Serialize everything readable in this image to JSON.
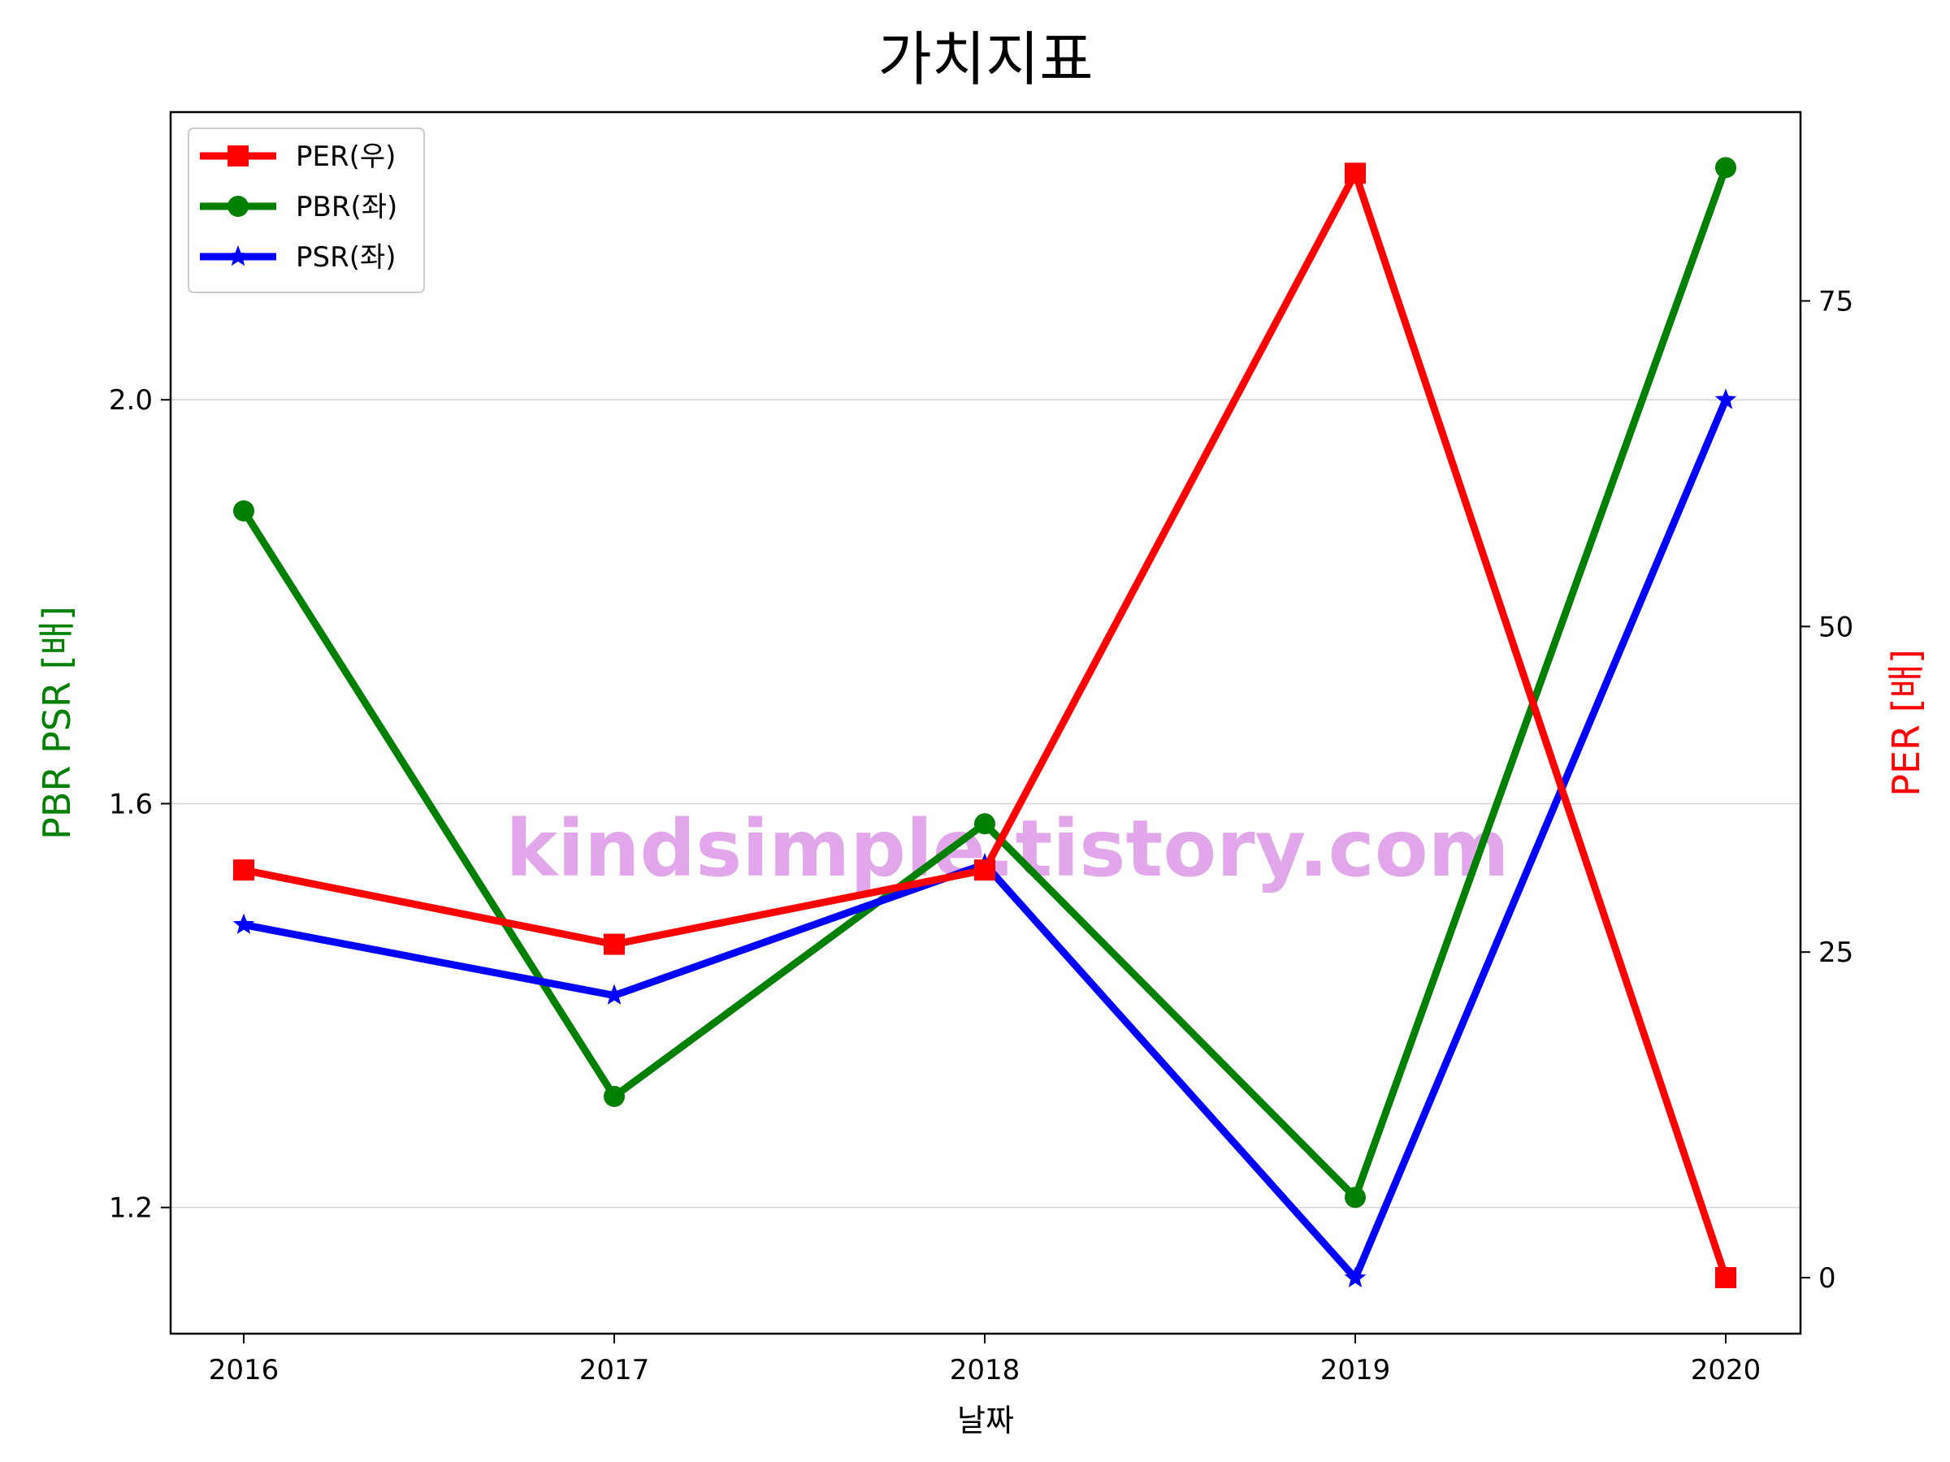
{
  "chart_data": {
    "type": "line",
    "title": "가치지표",
    "xlabel": "날짜",
    "ylabel_left": "PBR PSR [배]",
    "ylabel_right": "PER [배]",
    "x": [
      "2016",
      "2017",
      "2018",
      "2019",
      "2020"
    ],
    "x_ticks": [
      "2016",
      "2017",
      "2018",
      "2019",
      "2020"
    ],
    "y_left_range": [
      1.075,
      2.285
    ],
    "y_left_ticks": [
      "1.2",
      "1.6",
      "2.0"
    ],
    "y_right_range": [
      -4.3,
      89.5
    ],
    "y_right_ticks": [
      "0",
      "25",
      "50",
      "75"
    ],
    "grid": "horizontal",
    "legend_position": "top-left",
    "watermark": "kindsimple.tistory.com",
    "series": [
      {
        "name": "PER(우)",
        "axis": "right",
        "color": "#ff0000",
        "marker": "square",
        "values": [
          31.3,
          25.6,
          31.3,
          84.8,
          0.0
        ]
      },
      {
        "name": "PBR(좌)",
        "axis": "left",
        "color": "#008000",
        "marker": "circle",
        "values": [
          1.89,
          1.31,
          1.58,
          1.21,
          2.23
        ]
      },
      {
        "name": "PSR(좌)",
        "axis": "left",
        "color": "#0000ff",
        "marker": "star",
        "values": [
          1.48,
          1.41,
          1.54,
          1.13,
          2.0
        ]
      }
    ]
  }
}
